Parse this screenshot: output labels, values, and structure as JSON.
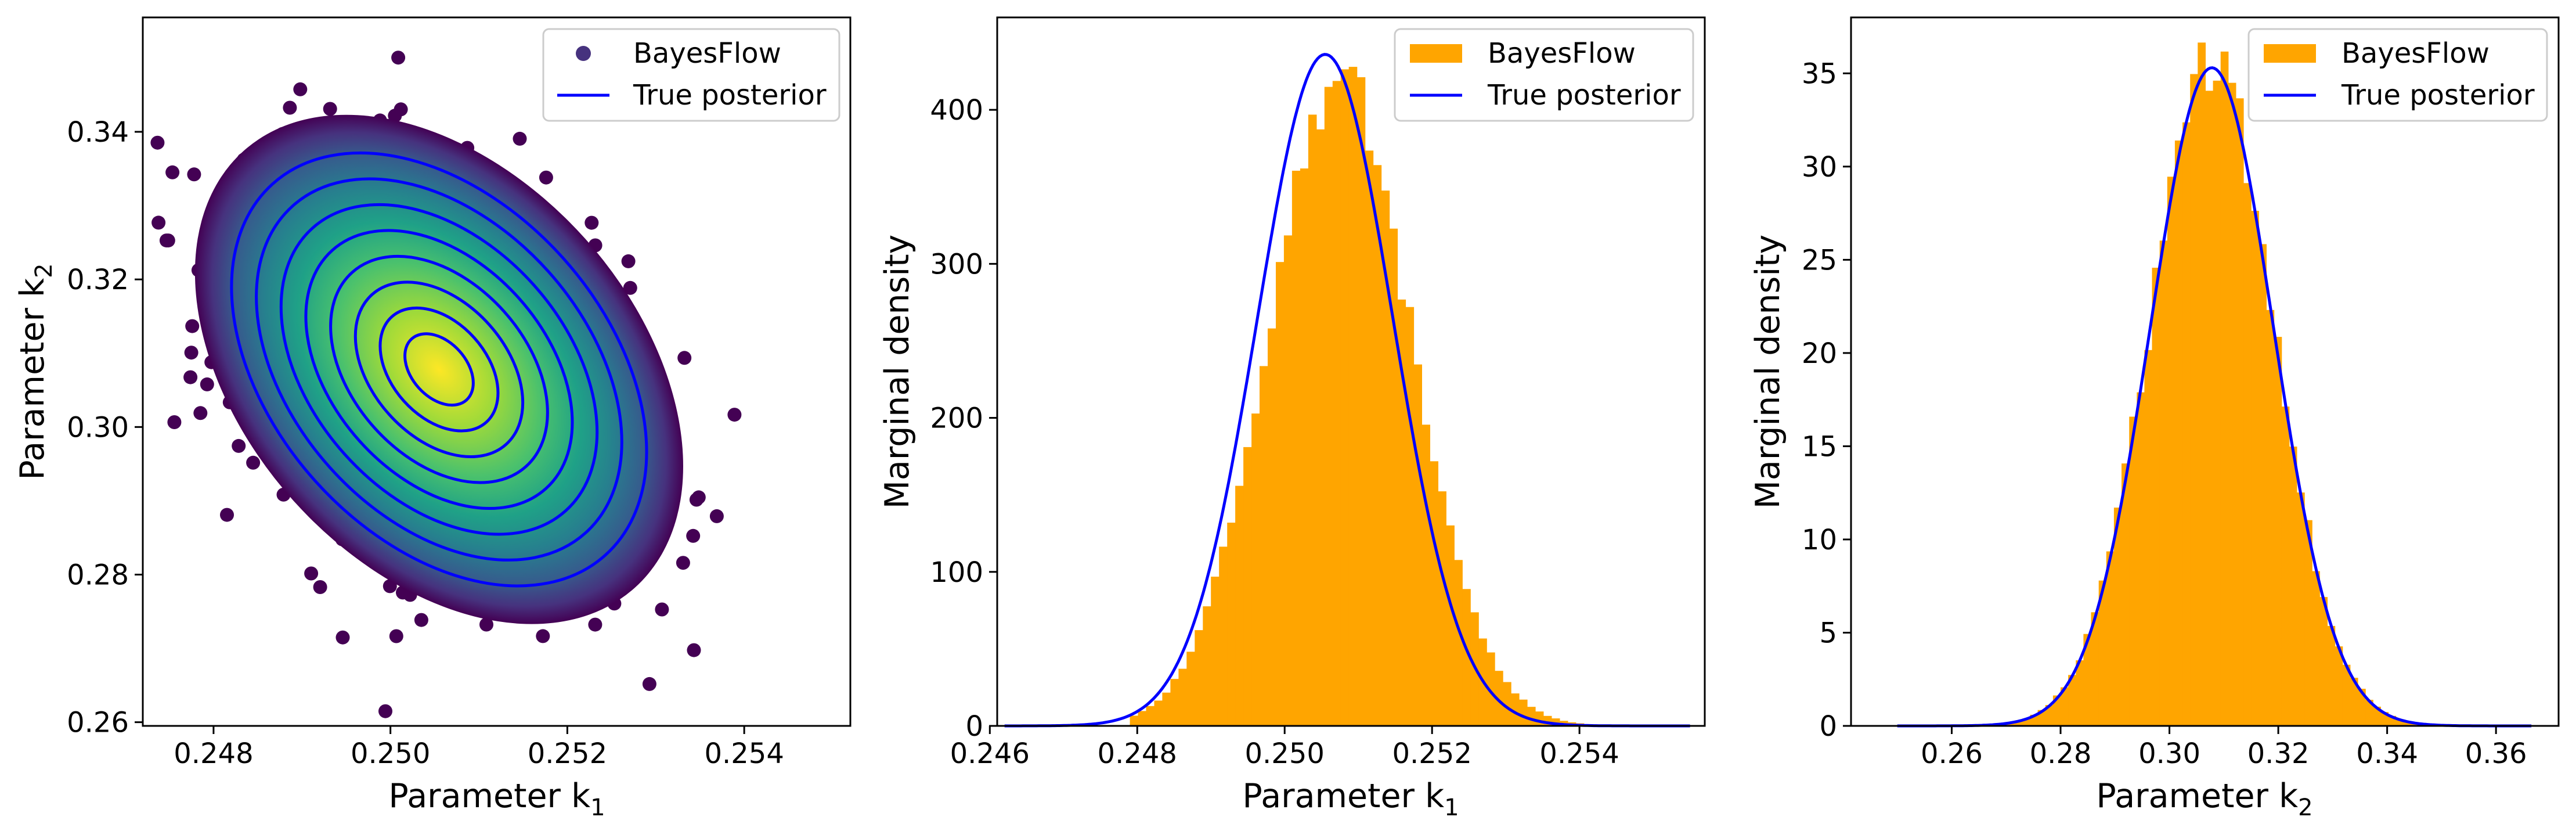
{
  "chart_data": [
    {
      "type": "scatter",
      "panel": "joint",
      "xlabel": "Parameter k",
      "xlabel_sub": "1",
      "ylabel": "Parameter k",
      "ylabel_sub": "2",
      "xlim": [
        0.2472,
        0.2552
      ],
      "ylim": [
        0.2595,
        0.3555
      ],
      "xticks": [
        0.248,
        0.25,
        0.252,
        0.254
      ],
      "yticks": [
        0.26,
        0.28,
        0.3,
        0.32,
        0.34
      ],
      "xtick_labels": [
        "0.248",
        "0.250",
        "0.252",
        "0.254"
      ],
      "ytick_labels": [
        "0.26",
        "0.28",
        "0.30",
        "0.32",
        "0.34"
      ],
      "legend": {
        "position": "top-right",
        "entries": [
          "BayesFlow",
          "True posterior"
        ]
      },
      "grid": false,
      "posterior_center": {
        "k1": 0.25055,
        "k2": 0.3078
      },
      "posterior_std": {
        "k1": 0.00092,
        "k2": 0.0115
      },
      "posterior_corr": -0.38,
      "contour_levels": 8,
      "colors": {
        "samples_low": "#440154",
        "samples_high": "#fde725",
        "contour": "#0000ff"
      }
    },
    {
      "type": "bar",
      "panel": "marginal_k1",
      "xlabel": "Parameter k",
      "xlabel_sub": "1",
      "ylabel": "Marginal density",
      "xlim": [
        0.2461,
        0.2557
      ],
      "ylim": [
        0,
        460
      ],
      "xticks": [
        0.246,
        0.248,
        0.25,
        0.252,
        0.254
      ],
      "yticks": [
        0,
        100,
        200,
        300,
        400
      ],
      "xtick_labels": [
        "0.246",
        "0.248",
        "0.250",
        "0.252",
        "0.254"
      ],
      "ytick_labels": [
        "0",
        "100",
        "200",
        "300",
        "400"
      ],
      "legend": {
        "position": "top-right",
        "entries": [
          "BayesFlow",
          "True posterior"
        ]
      },
      "grid": false,
      "histogram": {
        "range": [
          0.2479,
          0.2545
        ],
        "mean": 0.25075,
        "std": 0.000975,
        "peak": 420
      },
      "true_posterior": {
        "range": [
          0.2462,
          0.2555
        ],
        "mean": 0.25055,
        "std": 0.00092,
        "peak": 436
      },
      "colors": {
        "hist": "#ffa500",
        "curve": "#0000ff"
      }
    },
    {
      "type": "bar",
      "panel": "marginal_k2",
      "xlabel": "Parameter k",
      "xlabel_sub": "2",
      "ylabel": "Marginal density",
      "xlim": [
        0.2415,
        0.3715
      ],
      "ylim": [
        0,
        38
      ],
      "xticks": [
        0.26,
        0.28,
        0.3,
        0.32,
        0.34,
        0.36
      ],
      "yticks": [
        0,
        5,
        10,
        15,
        20,
        25,
        30,
        35
      ],
      "xtick_labels": [
        "0.26",
        "0.28",
        "0.30",
        "0.32",
        "0.34",
        "0.36"
      ],
      "ytick_labels": [
        "0",
        "5",
        "10",
        "15",
        "20",
        "25",
        "30",
        "35"
      ],
      "legend": {
        "position": "top-right",
        "entries": [
          "BayesFlow",
          "True posterior"
        ]
      },
      "grid": false,
      "histogram": {
        "range": [
          0.266,
          0.35
        ],
        "mean": 0.3078,
        "std": 0.0114,
        "peak": 35.5
      },
      "true_posterior": {
        "range": [
          0.25,
          0.3665
        ],
        "mean": 0.3078,
        "std": 0.0113,
        "peak": 35.3
      },
      "colors": {
        "hist": "#ffa500",
        "curve": "#0000ff"
      }
    }
  ]
}
